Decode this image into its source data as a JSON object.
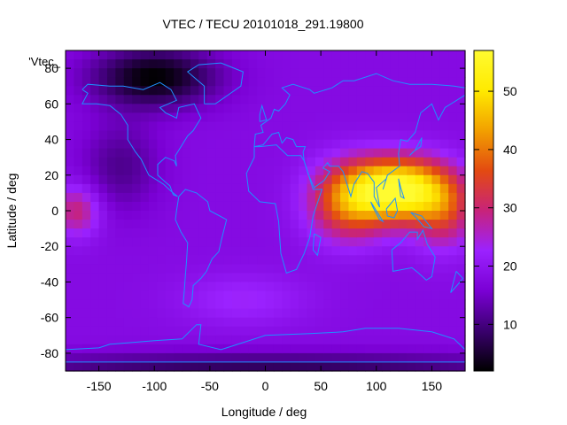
{
  "chart_data": {
    "type": "heatmap",
    "title": "VTEC / TECU 20101018_291.19800",
    "xlabel": "Longitude / deg",
    "ylabel": "Latitude / deg",
    "key_label": "'Vtec_",
    "xlim": [
      -180,
      180
    ],
    "ylim": [
      -90,
      90
    ],
    "x_ticks": [
      -150,
      -100,
      -50,
      0,
      50,
      100,
      150
    ],
    "y_ticks": [
      -80,
      -60,
      -40,
      -20,
      0,
      20,
      40,
      60,
      80
    ],
    "colorbar": {
      "range": [
        2,
        57
      ],
      "ticks": [
        10,
        20,
        30,
        40,
        50
      ],
      "palette": [
        "#000000",
        "#3a006e",
        "#7a00d4",
        "#9b22ff",
        "#c8237a",
        "#e34a11",
        "#f2a000",
        "#ffea00",
        "#fffb30"
      ]
    },
    "coastline_color": "#1e90ff",
    "grid": false,
    "field": {
      "background_tecu": 18,
      "features": [
        {
          "lon": 120,
          "lat": 12,
          "value": 38,
          "sigma_lon": 30,
          "sigma_lat": 12
        },
        {
          "lon": 75,
          "lat": 5,
          "value": 20,
          "sigma_lon": 25,
          "sigma_lat": 15
        },
        {
          "lon": 160,
          "lat": 0,
          "value": 14,
          "sigma_lon": 20,
          "sigma_lat": 15
        },
        {
          "lon": -170,
          "lat": 0,
          "value": 12,
          "sigma_lon": 15,
          "sigma_lat": 10
        },
        {
          "lon": -100,
          "lat": 75,
          "value": -16,
          "sigma_lon": 40,
          "sigma_lat": 12
        },
        {
          "lon": -130,
          "lat": 25,
          "value": -7,
          "sigma_lon": 25,
          "sigma_lat": 18
        },
        {
          "lon": -20,
          "lat": -50,
          "value": 5,
          "sigma_lon": 40,
          "sigma_lat": 10
        },
        {
          "lon": 0,
          "lat": -88,
          "value": -10,
          "sigma_lon": 200,
          "sigma_lat": 6
        }
      ]
    }
  }
}
